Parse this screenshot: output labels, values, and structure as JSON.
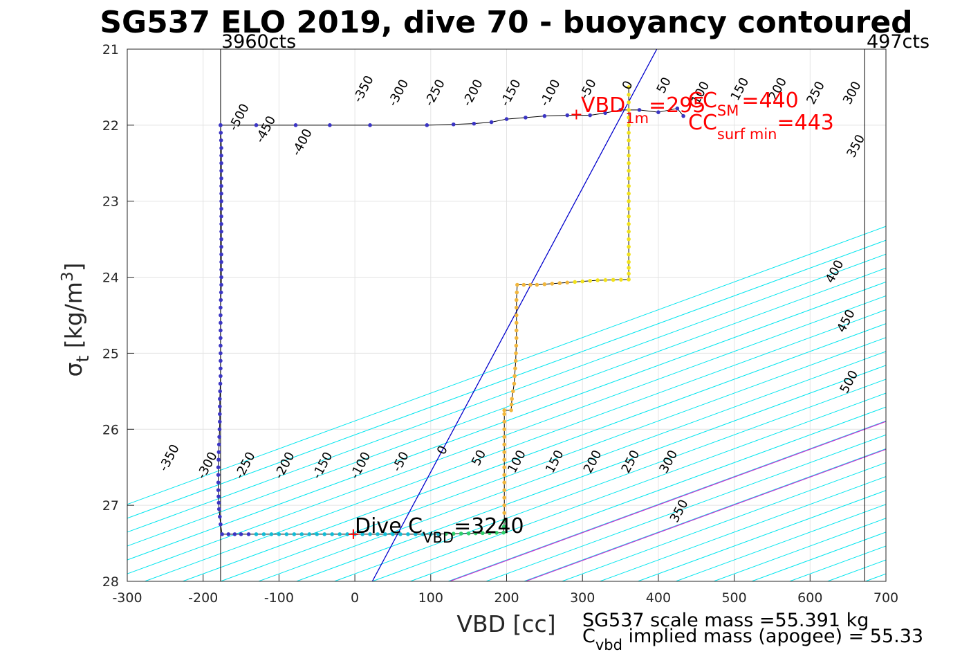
{
  "chart_data": {
    "type": "scatter",
    "title": "SG537 ELO 2019, dive 70 - buoyancy contoured",
    "xlabel": "VBD [cc]",
    "ylabel": {
      "symbol": "σ",
      "sub": "t",
      "text": " [kg/m",
      "sup": "3",
      "close": "]"
    },
    "xlim": [
      -300,
      700
    ],
    "ylim": [
      21,
      28
    ],
    "y_reversed": true,
    "grid": true,
    "x_ticks": [
      -300,
      -200,
      -100,
      0,
      100,
      200,
      300,
      400,
      500,
      600,
      700
    ],
    "y_ticks": [
      21,
      22,
      23,
      24,
      25,
      26,
      27,
      28
    ],
    "x_tick_labels": [
      "-300",
      "-200",
      "-100",
      "0",
      "100",
      "200",
      "300",
      "400",
      "500",
      "600",
      "700"
    ],
    "y_tick_labels": [
      "21",
      "22",
      "23",
      "24",
      "25",
      "26",
      "27",
      "28"
    ],
    "contours": {
      "color": "#00e5ee",
      "slope_cc_per_sigma": 273.5,
      "levels": [
        -600,
        -550,
        -500,
        -450,
        -400,
        -350,
        -300,
        -250,
        -200,
        -150,
        -100,
        -50,
        0,
        50,
        100,
        150,
        200,
        250,
        300,
        350,
        400,
        450,
        500,
        550,
        600,
        650,
        700,
        750,
        800,
        850,
        900
      ],
      "zero_line": {
        "color": "#0000cc",
        "x_at_y28": 23,
        "x_at_y21": 398
      },
      "highlight_lines": [
        {
          "color": "#cc33cc",
          "x_at_y28": 125
        },
        {
          "color": "#cc33cc",
          "x_at_y28": 225
        }
      ],
      "labels_top": [
        {
          "text": "-500",
          "x": -148,
          "y": 21.92
        },
        {
          "text": "-450",
          "x": -113,
          "y": 22.08
        },
        {
          "text": "-400",
          "x": -65,
          "y": 22.25
        },
        {
          "text": "-350",
          "x": 16,
          "y": 21.55
        },
        {
          "text": "-300",
          "x": 62,
          "y": 21.6
        },
        {
          "text": "-250",
          "x": 110,
          "y": 21.6
        },
        {
          "text": "-200",
          "x": 160,
          "y": 21.6
        },
        {
          "text": "-150",
          "x": 210,
          "y": 21.6
        },
        {
          "text": "-100",
          "x": 262,
          "y": 21.6
        },
        {
          "text": "-50",
          "x": 312,
          "y": 21.55
        },
        {
          "text": "0",
          "x": 364,
          "y": 21.5
        },
        {
          "text": "50",
          "x": 412,
          "y": 21.5
        },
        {
          "text": "100",
          "x": 460,
          "y": 21.6
        },
        {
          "text": "150",
          "x": 512,
          "y": 21.55
        },
        {
          "text": "200",
          "x": 562,
          "y": 21.55
        },
        {
          "text": "250",
          "x": 612,
          "y": 21.6
        },
        {
          "text": "300",
          "x": 660,
          "y": 21.6
        },
        {
          "text": "350",
          "x": 665,
          "y": 22.3
        },
        {
          "text": "400",
          "x": 637,
          "y": 23.95
        },
        {
          "text": "450",
          "x": 652,
          "y": 24.6
        },
        {
          "text": "500",
          "x": 656,
          "y": 25.4
        }
      ],
      "labels_bottom": [
        {
          "text": "-350",
          "x": -240,
          "y": 26.4
        },
        {
          "text": "-300",
          "x": -190,
          "y": 26.5
        },
        {
          "text": "-250",
          "x": -140,
          "y": 26.5
        },
        {
          "text": "-200",
          "x": -88,
          "y": 26.5
        },
        {
          "text": "-150",
          "x": -38,
          "y": 26.5
        },
        {
          "text": "-100",
          "x": 12,
          "y": 26.5
        },
        {
          "text": "-50",
          "x": 65,
          "y": 26.45
        },
        {
          "text": "0",
          "x": 120,
          "y": 26.3
        },
        {
          "text": "50",
          "x": 168,
          "y": 26.4
        },
        {
          "text": "100",
          "x": 218,
          "y": 26.45
        },
        {
          "text": "150",
          "x": 268,
          "y": 26.45
        },
        {
          "text": "200",
          "x": 318,
          "y": 26.45
        },
        {
          "text": "250",
          "x": 368,
          "y": 26.45
        },
        {
          "text": "300",
          "x": 418,
          "y": 26.45
        },
        {
          "text": "350",
          "x": 432,
          "y": 27.1
        }
      ]
    },
    "reference_lines": [
      {
        "label": "3960cts",
        "x": -177
      },
      {
        "label": "497cts",
        "x": 672
      }
    ],
    "series": [
      {
        "kind": "dive-path",
        "points": [
          [
            -177,
            22.0
          ],
          [
            -176,
            22.3
          ],
          [
            -176,
            22.6
          ],
          [
            -176,
            22.9
          ],
          [
            -176,
            23.2
          ],
          [
            -176,
            23.5
          ],
          [
            -176,
            23.8
          ],
          [
            -176,
            24.1
          ],
          [
            -177,
            24.4
          ],
          [
            -177,
            24.7
          ],
          [
            -177,
            25.0
          ],
          [
            -177,
            25.3
          ],
          [
            -178,
            25.6
          ],
          [
            -178,
            25.9
          ],
          [
            -179,
            26.2
          ],
          [
            -180,
            26.5
          ],
          [
            -180,
            26.8
          ],
          [
            -179,
            27.05
          ],
          [
            -177,
            27.25
          ],
          [
            -175,
            27.38
          ],
          [
            -150,
            27.38
          ],
          [
            -100,
            27.38
          ],
          [
            -50,
            27.38
          ],
          [
            0,
            27.38
          ],
          [
            50,
            27.38
          ],
          [
            100,
            27.38
          ],
          [
            150,
            27.37
          ],
          [
            196,
            27.36
          ],
          [
            197,
            27.2
          ],
          [
            197,
            27.0
          ],
          [
            197,
            26.7
          ],
          [
            197,
            26.4
          ],
          [
            197,
            26.1
          ],
          [
            197,
            25.8
          ],
          [
            197,
            25.75
          ],
          [
            206,
            25.75
          ],
          [
            207,
            25.6
          ],
          [
            210,
            25.4
          ],
          [
            212,
            25.1
          ],
          [
            213,
            24.8
          ],
          [
            213,
            24.5
          ],
          [
            213,
            24.3
          ],
          [
            214,
            24.1
          ],
          [
            240,
            24.1
          ],
          [
            280,
            24.07
          ],
          [
            320,
            24.04
          ],
          [
            361,
            24.03
          ],
          [
            361,
            23.8
          ],
          [
            361,
            23.5
          ],
          [
            361,
            23.2
          ],
          [
            361,
            22.9
          ],
          [
            361,
            22.6
          ],
          [
            361,
            22.3
          ],
          [
            361,
            22.0
          ],
          [
            361,
            21.7
          ],
          [
            361,
            21.5
          ]
        ]
      },
      {
        "kind": "surface-path",
        "points": [
          [
            -177,
            22.0
          ],
          [
            -130,
            22.0
          ],
          [
            -78,
            22.0
          ],
          [
            -33,
            22.0
          ],
          [
            20,
            22.0
          ],
          [
            95,
            22.0
          ],
          [
            130,
            21.99
          ],
          [
            157,
            21.98
          ],
          [
            180,
            21.96
          ],
          [
            200,
            21.92
          ],
          [
            225,
            21.9
          ],
          [
            250,
            21.88
          ],
          [
            280,
            21.87
          ],
          [
            310,
            21.87
          ],
          [
            330,
            21.84
          ],
          [
            350,
            21.8
          ],
          [
            375,
            21.8
          ],
          [
            400,
            21.83
          ],
          [
            425,
            21.78
          ],
          [
            433,
            21.88
          ]
        ]
      }
    ],
    "markers": [
      {
        "kind": "red-plus",
        "x": 292,
        "y": 21.86
      },
      {
        "kind": "red-plus",
        "x": -2,
        "y": 27.38
      }
    ],
    "annotations": {
      "vbd_1m": {
        "main": "VBD",
        "sub": "1m",
        "value": "=295"
      },
      "cc_sm": {
        "main": "CC",
        "sub": "SM",
        "value": "=440"
      },
      "cc_surf_min": {
        "main": "CC",
        "sub": "surf min",
        "value": "=443"
      },
      "dive_c_vbd": {
        "main": "Dive C",
        "sub": "VBD",
        "value": "=3240"
      }
    },
    "footer": {
      "scale_mass": "SG537 scale mass =55.391 kg",
      "implied_main": "C",
      "implied_sub": "vbd",
      "implied_text": " implied mass (apogee) = 55.33"
    },
    "colors": {
      "dive_start": "#3b35c4",
      "dive_bottom": "#11bdd6",
      "dive_turn": "#2ed16b",
      "dive_up": "#f2b73d",
      "dive_end": "#f2e21a",
      "surface": "#3b35c4",
      "annotation": "#ff0000"
    }
  }
}
